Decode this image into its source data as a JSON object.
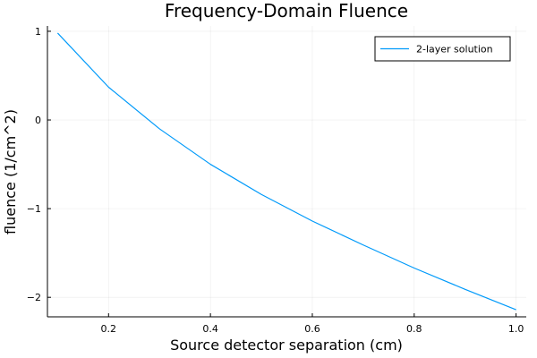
{
  "chart_data": {
    "type": "line",
    "title": "Frequency-Domain Fluence",
    "xlabel": "Source detector separation (cm)",
    "ylabel": "fluence (1/cm^2)",
    "xlim": [
      0.08,
      1.02
    ],
    "ylim": [
      -2.22,
      1.06
    ],
    "xticks": [
      0.2,
      0.4,
      0.6,
      0.8,
      1.0
    ],
    "xtick_labels": [
      "0.2",
      "0.4",
      "0.6",
      "0.8",
      "1.0"
    ],
    "yticks": [
      -2,
      -1,
      0,
      1
    ],
    "ytick_labels": [
      "−2",
      "−1",
      "0",
      "1"
    ],
    "grid": true,
    "legend_position": "top-right",
    "series": [
      {
        "name": "2-layer solution",
        "color": "#009AFA",
        "x": [
          0.1,
          0.2,
          0.3,
          0.4,
          0.5,
          0.6,
          0.7,
          0.8,
          0.9,
          1.0
        ],
        "y": [
          0.98,
          0.37,
          -0.1,
          -0.5,
          -0.84,
          -1.14,
          -1.41,
          -1.67,
          -1.91,
          -2.14
        ]
      }
    ]
  }
}
